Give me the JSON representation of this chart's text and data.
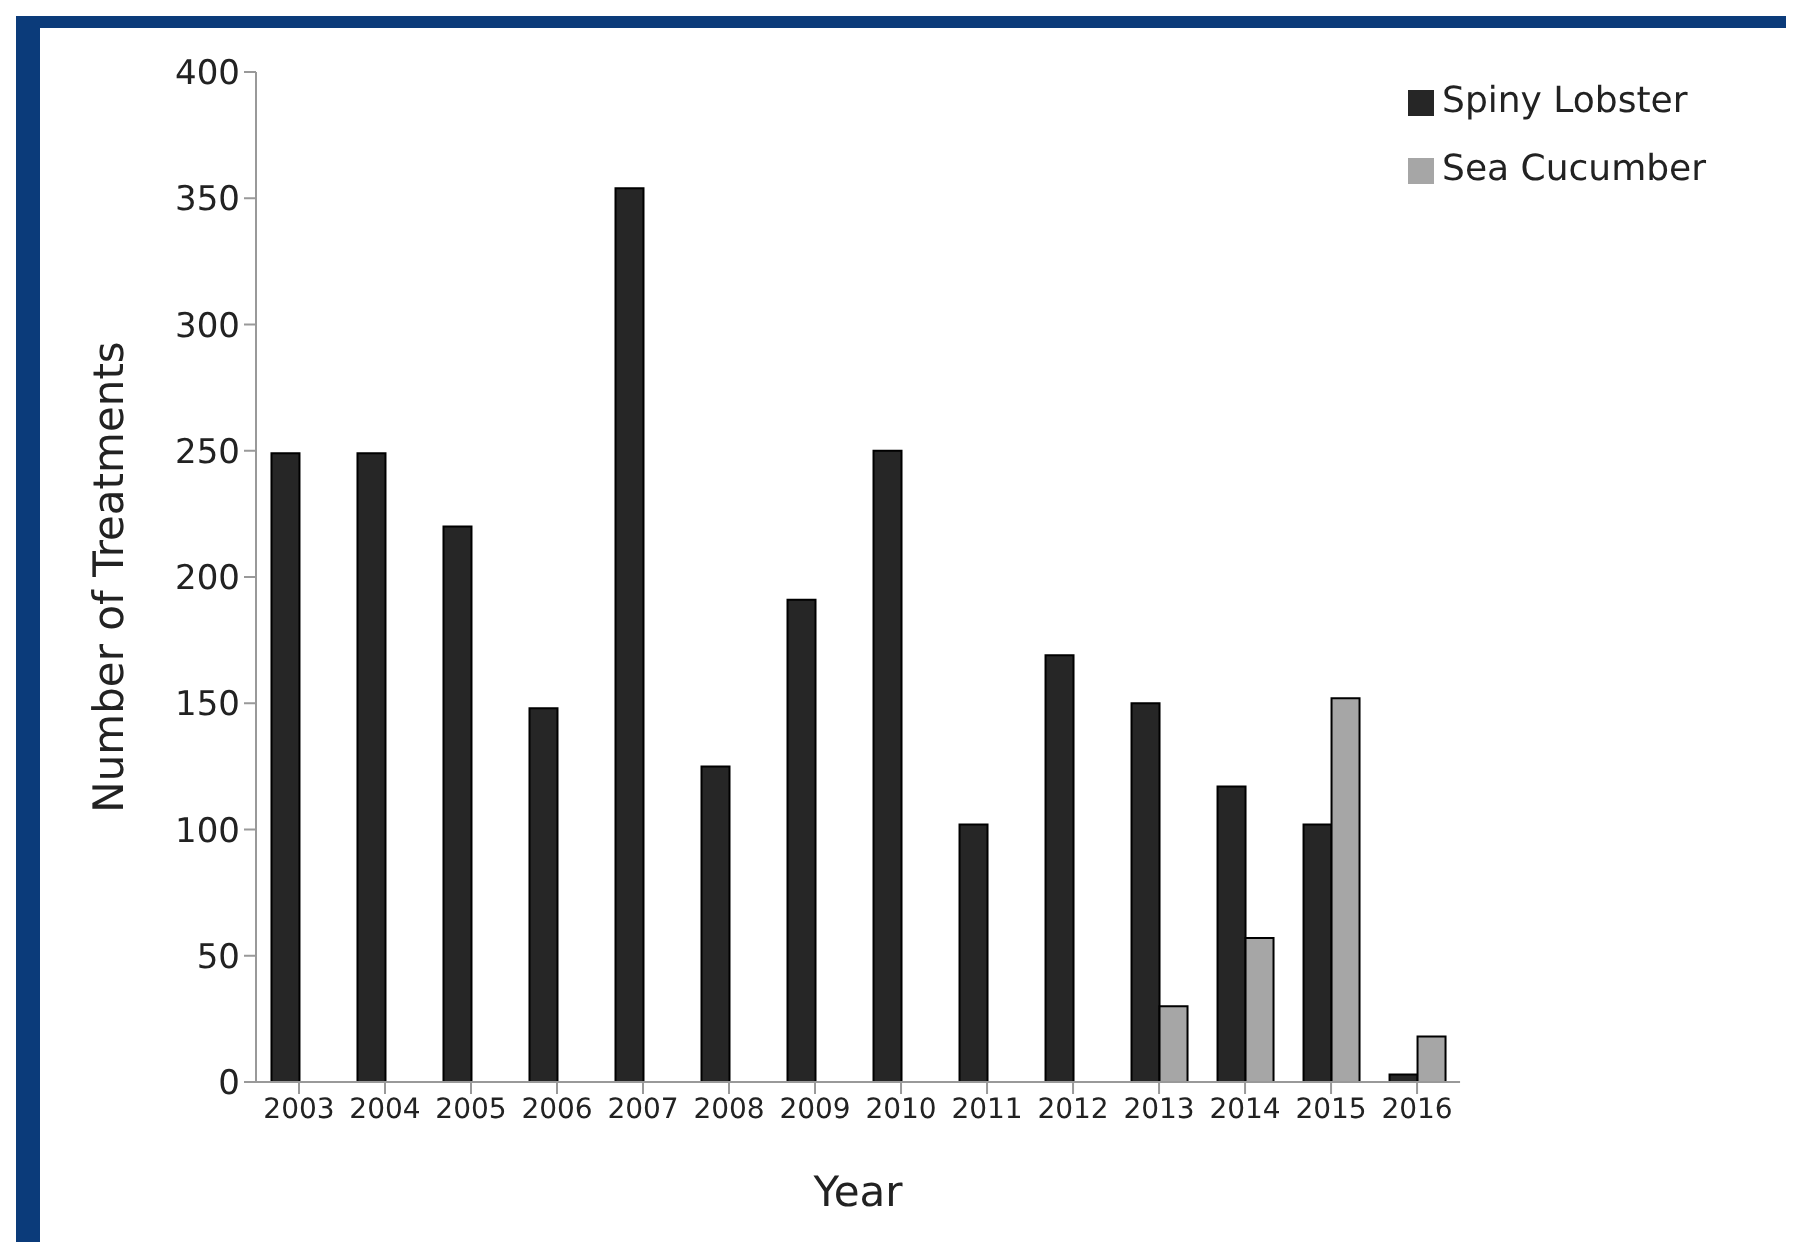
{
  "chart_data": {
    "type": "bar",
    "xlabel": "Year",
    "ylabel": "Number of Treatments",
    "categories": [
      "2003",
      "2004",
      "2005",
      "2006",
      "2007",
      "2008",
      "2009",
      "2010",
      "2011",
      "2012",
      "2013",
      "2014",
      "2015",
      "2016"
    ],
    "series": [
      {
        "name": "Spiny Lobster",
        "color": "#262626",
        "values": [
          249,
          249,
          220,
          148,
          354,
          125,
          191,
          250,
          102,
          169,
          150,
          117,
          102,
          3
        ]
      },
      {
        "name": "Sea Cucumber",
        "color": "#a6a6a6",
        "values": [
          null,
          null,
          null,
          null,
          null,
          null,
          null,
          null,
          null,
          null,
          30,
          57,
          152,
          18
        ]
      }
    ],
    "ylim": [
      0,
      400
    ],
    "yticks": [
      0,
      50,
      100,
      150,
      200,
      250,
      300,
      350,
      400
    ],
    "grid": false,
    "legend": "top right"
  }
}
